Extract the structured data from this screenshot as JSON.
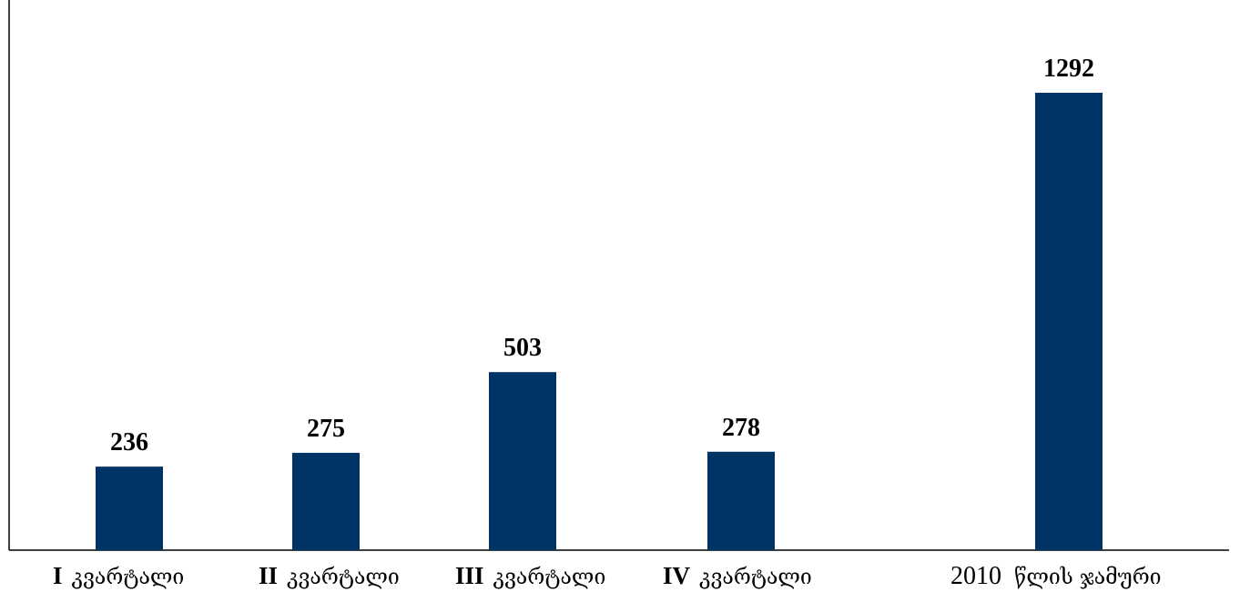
{
  "chart_data": {
    "type": "bar",
    "categories": [
      {
        "prefix": "I",
        "label": "კვარტალი"
      },
      {
        "prefix": "II",
        "label": "კვარტალი"
      },
      {
        "prefix": "III",
        "label": "კვარტალი"
      },
      {
        "prefix": "IV",
        "label": "კვარტალი"
      },
      {
        "prefix": "2010",
        "label": "წლის ჯამური"
      }
    ],
    "values": [
      236,
      275,
      503,
      278,
      1292
    ],
    "value_labels": [
      "236",
      "275",
      "503",
      "278",
      "1292"
    ],
    "ylim": [
      0,
      1500
    ],
    "grid": false,
    "legend": "none",
    "bar_color": "#003366"
  }
}
